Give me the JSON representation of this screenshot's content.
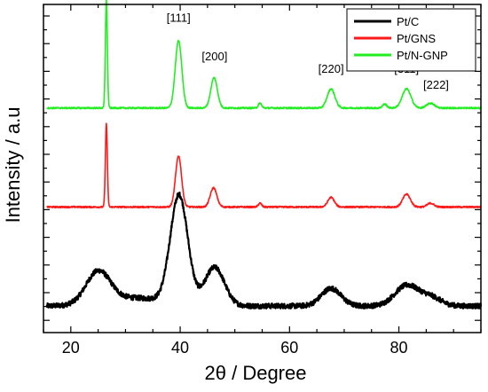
{
  "chart_data": {
    "type": "line",
    "title": "",
    "xlabel": "2θ / Degree",
    "ylabel": "Intensity / a.u",
    "xlim": [
      15,
      95
    ],
    "xticks": [
      20,
      40,
      60,
      80
    ],
    "ylim": [
      0,
      10
    ],
    "y_tick_labels": "none",
    "grid": false,
    "legend": {
      "position": "top-right",
      "entries": [
        "Pt/C",
        "Pt/GNS",
        "Pt/N-GNP"
      ]
    },
    "series": [
      {
        "name": "Pt/C",
        "color": "#000000",
        "baseline": 0.0,
        "peaks": [
          {
            "x": 25.0,
            "height": 1.0,
            "width": 2.2
          },
          {
            "x": 39.8,
            "height": 3.4,
            "width": 1.6
          },
          {
            "x": 46.3,
            "height": 1.2,
            "width": 1.8
          },
          {
            "x": 67.6,
            "height": 0.55,
            "width": 1.8
          },
          {
            "x": 81.5,
            "height": 0.65,
            "width": 2.2
          },
          {
            "x": 86.0,
            "height": 0.25,
            "width": 1.8
          }
        ]
      },
      {
        "name": "Pt/GNS",
        "color": "#ff1a1a",
        "baseline": 3.1,
        "peaks": [
          {
            "x": 26.5,
            "height": 2.6,
            "width": 0.18
          },
          {
            "x": 39.7,
            "height": 1.6,
            "width": 0.55
          },
          {
            "x": 46.1,
            "height": 0.6,
            "width": 0.6
          },
          {
            "x": 54.6,
            "height": 0.12,
            "width": 0.3
          },
          {
            "x": 67.6,
            "height": 0.3,
            "width": 0.6
          },
          {
            "x": 81.4,
            "height": 0.4,
            "width": 0.7
          },
          {
            "x": 85.8,
            "height": 0.12,
            "width": 0.6
          }
        ]
      },
      {
        "name": "Pt/N-GNP",
        "color": "#22ee22",
        "baseline": 6.2,
        "peaks": [
          {
            "x": 26.5,
            "height": 3.4,
            "width": 0.18
          },
          {
            "x": 39.7,
            "height": 2.1,
            "width": 0.6
          },
          {
            "x": 46.2,
            "height": 0.95,
            "width": 0.6
          },
          {
            "x": 54.6,
            "height": 0.15,
            "width": 0.3
          },
          {
            "x": 67.6,
            "height": 0.6,
            "width": 0.7
          },
          {
            "x": 77.4,
            "height": 0.12,
            "width": 0.4
          },
          {
            "x": 81.4,
            "height": 0.6,
            "width": 0.8
          },
          {
            "x": 85.8,
            "height": 0.15,
            "width": 0.7
          }
        ]
      }
    ],
    "annotations": [
      {
        "text": "[111]",
        "x": 39.7,
        "y": 8.9
      },
      {
        "text": "[200]",
        "x": 46.3,
        "y": 7.7
      },
      {
        "text": "[220]",
        "x": 67.6,
        "y": 7.3
      },
      {
        "text": "[311]",
        "x": 81.4,
        "y": 7.3
      },
      {
        "text": "[222]",
        "x": 86.8,
        "y": 6.8
      }
    ]
  }
}
